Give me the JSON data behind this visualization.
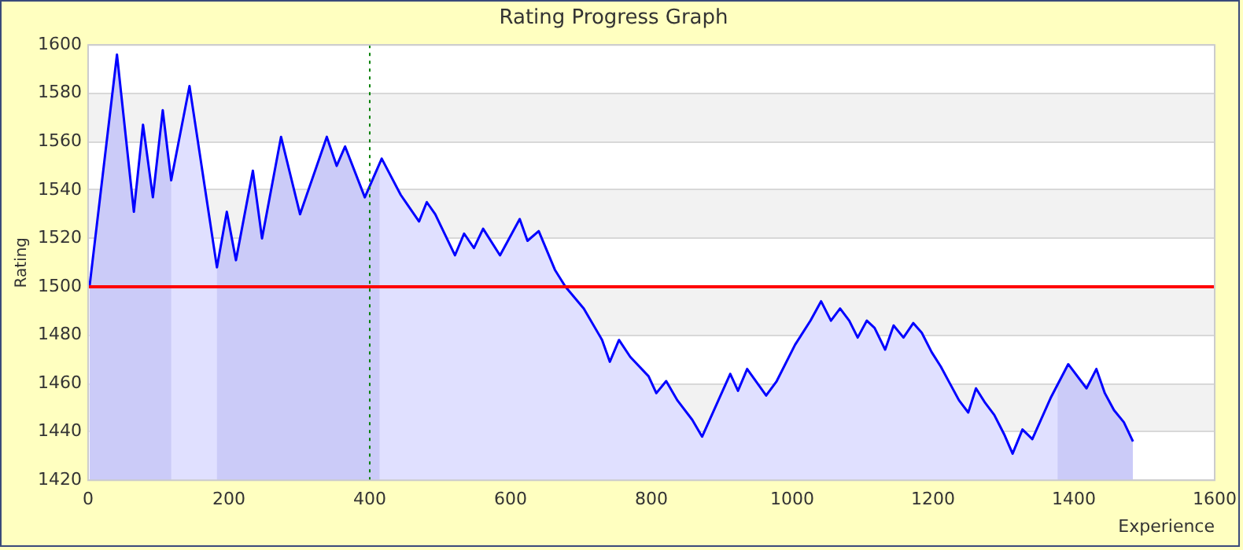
{
  "chart_data": {
    "type": "area",
    "title": "Rating Progress Graph",
    "xlabel": "Experience",
    "ylabel": "Rating",
    "x": [
      2,
      41,
      65,
      78,
      92,
      106,
      118,
      144,
      183,
      197,
      210,
      234,
      247,
      274,
      301,
      339,
      353,
      365,
      393,
      417,
      444,
      470,
      481,
      493,
      521,
      534,
      548,
      561,
      585,
      613,
      624,
      640,
      663,
      678,
      704,
      730,
      741,
      754,
      770,
      796,
      807,
      821,
      837,
      858,
      872,
      912,
      923,
      936,
      963,
      978,
      1004,
      1026,
      1041,
      1055,
      1068,
      1081,
      1093,
      1106,
      1117,
      1132,
      1144,
      1158,
      1172,
      1184,
      1198,
      1211,
      1224,
      1237,
      1250,
      1261,
      1274,
      1287,
      1301,
      1313,
      1327,
      1341,
      1367,
      1392,
      1418,
      1432,
      1444,
      1457,
      1471,
      1484
    ],
    "series": [
      {
        "color": "#0000ff",
        "values": [
          1500,
          1596,
          1531,
          1567,
          1537,
          1573,
          1544,
          1583,
          1508,
          1531,
          1511,
          1548,
          1520,
          1562,
          1530,
          1562,
          1550,
          1558,
          1537,
          1553,
          1538,
          1527,
          1535,
          1530,
          1513,
          1522,
          1516,
          1524,
          1513,
          1528,
          1519,
          1523,
          1507,
          1500,
          1491,
          1478,
          1469,
          1478,
          1471,
          1463,
          1456,
          1461,
          1453,
          1445,
          1438,
          1464,
          1457,
          1466,
          1455,
          1461,
          1476,
          1486,
          1494,
          1486,
          1491,
          1486,
          1479,
          1486,
          1483,
          1474,
          1484,
          1479,
          1485,
          1481,
          1473,
          1467,
          1460,
          1453,
          1448,
          1458,
          1452,
          1447,
          1439,
          1431,
          1441,
          1437,
          1454,
          1468,
          1458,
          1466,
          1456,
          1449,
          1444,
          1436
        ]
      }
    ],
    "xlim": [
      0,
      1600
    ],
    "xticks": [
      0,
      200,
      400,
      600,
      800,
      1000,
      1200,
      1400,
      1600
    ],
    "ylim": [
      1420,
      1600
    ],
    "yticks": [
      1420,
      1440,
      1460,
      1480,
      1500,
      1520,
      1540,
      1560,
      1580,
      1600
    ],
    "grid": "y",
    "legend": false,
    "marker": "none",
    "line_style": "solid",
    "ref_lines": [
      {
        "axis": "y",
        "value": 1500,
        "color": "#ff0000",
        "line_style": "solid"
      },
      {
        "axis": "x",
        "value": 400,
        "color": "#008000",
        "line_style": "dotted"
      }
    ],
    "bands": [
      {
        "axis": "x",
        "from": 0,
        "to": 118,
        "color": "#e8e8f7"
      },
      {
        "axis": "x",
        "from": 183,
        "to": 414,
        "color": "#e8e8f7"
      },
      {
        "axis": "x",
        "from": 1377,
        "to": 1484,
        "color": "#e8e8f7"
      }
    ]
  }
}
